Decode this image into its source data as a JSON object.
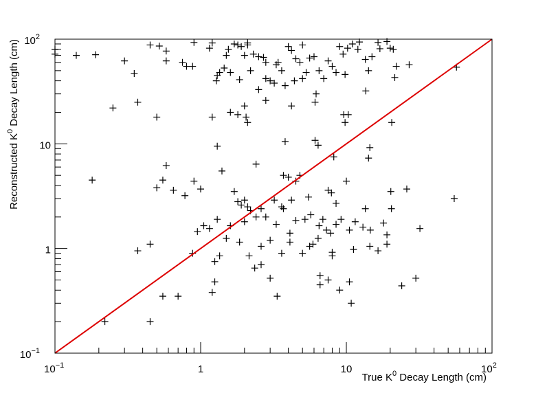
{
  "chart_data": {
    "type": "scatter",
    "title": "",
    "xlabel": {
      "pre": "True K",
      "sup": "0",
      "post": " Decay Length (cm)"
    },
    "ylabel": {
      "pre": "Reconstructed K",
      "sup": "0",
      "post": " Decay Length (cm)"
    },
    "xscale": "log",
    "yscale": "log",
    "xlim": [
      0.1,
      100
    ],
    "ylim": [
      0.1,
      100
    ],
    "grid": false,
    "marker": "+",
    "marker_color": "#000000",
    "line_color": "#dd0000",
    "x_ticks": [
      {
        "value": 0.1,
        "base": "10",
        "exp": "−1"
      },
      {
        "value": 1,
        "base": "1",
        "exp": ""
      },
      {
        "value": 10,
        "base": "10",
        "exp": ""
      },
      {
        "value": 100,
        "base": "10",
        "exp": "2"
      }
    ],
    "y_ticks": [
      {
        "value": 0.1,
        "base": "10",
        "exp": "−1"
      },
      {
        "value": 1,
        "base": "1",
        "exp": ""
      },
      {
        "value": 10,
        "base": "10",
        "exp": ""
      },
      {
        "value": 100,
        "base": "10",
        "exp": "2"
      }
    ],
    "reference_line": {
      "from": [
        0.1,
        0.1
      ],
      "to": [
        100,
        100
      ]
    },
    "points": [
      [
        0.1,
        72
      ],
      [
        0.1,
        80
      ],
      [
        0.14,
        70
      ],
      [
        0.19,
        71
      ],
      [
        0.3,
        62
      ],
      [
        0.35,
        47
      ],
      [
        0.45,
        88
      ],
      [
        0.52,
        86
      ],
      [
        0.58,
        62
      ],
      [
        0.58,
        77
      ],
      [
        0.75,
        60
      ],
      [
        0.8,
        55
      ],
      [
        0.88,
        55
      ],
      [
        0.9,
        93
      ],
      [
        1.15,
        82
      ],
      [
        1.2,
        92
      ],
      [
        1.28,
        40
      ],
      [
        1.3,
        45
      ],
      [
        1.35,
        48
      ],
      [
        1.45,
        53
      ],
      [
        1.55,
        80
      ],
      [
        1.6,
        48
      ],
      [
        1.7,
        90
      ],
      [
        1.8,
        88
      ],
      [
        1.85,
        41
      ],
      [
        1.9,
        85
      ],
      [
        2.0,
        70
      ],
      [
        2.1,
        92
      ],
      [
        2.2,
        50
      ],
      [
        2.3,
        72
      ],
      [
        2.5,
        68
      ],
      [
        2.7,
        67
      ],
      [
        2.8,
        42
      ],
      [
        3.0,
        40
      ],
      [
        3.2,
        38
      ],
      [
        3.4,
        60
      ],
      [
        3.6,
        50
      ],
      [
        4.0,
        85
      ],
      [
        4.2,
        78
      ],
      [
        4.5,
        65
      ],
      [
        4.8,
        60
      ],
      [
        5.0,
        88
      ],
      [
        5.3,
        48
      ],
      [
        5.6,
        66
      ],
      [
        6.0,
        68
      ],
      [
        6.5,
        50
      ],
      [
        7.0,
        42
      ],
      [
        7.5,
        62
      ],
      [
        8.0,
        55
      ],
      [
        8.5,
        48
      ],
      [
        9.0,
        85
      ],
      [
        9.5,
        72
      ],
      [
        10.2,
        82
      ],
      [
        11,
        90
      ],
      [
        12,
        80
      ],
      [
        13.5,
        64
      ],
      [
        14.2,
        50
      ],
      [
        15,
        68
      ],
      [
        17,
        81
      ],
      [
        19,
        95
      ],
      [
        20,
        82
      ],
      [
        21,
        80
      ],
      [
        22,
        55
      ],
      [
        27,
        57
      ],
      [
        57,
        54
      ],
      [
        2.8,
        60
      ],
      [
        3.3,
        57
      ],
      [
        4.4,
        40
      ],
      [
        5.0,
        42
      ],
      [
        3.8,
        36
      ],
      [
        6.2,
        30
      ],
      [
        2.1,
        88
      ],
      [
        1.5,
        70
      ],
      [
        9.8,
        46
      ],
      [
        12.3,
        94
      ],
      [
        16.5,
        93
      ],
      [
        0.25,
        22
      ],
      [
        0.37,
        25
      ],
      [
        0.5,
        18
      ],
      [
        1.2,
        18
      ],
      [
        1.6,
        20
      ],
      [
        1.8,
        19
      ],
      [
        2.0,
        23
      ],
      [
        2.05,
        18
      ],
      [
        2.1,
        16
      ],
      [
        2.5,
        33
      ],
      [
        2.8,
        26
      ],
      [
        4.2,
        23
      ],
      [
        6.1,
        25
      ],
      [
        9.6,
        19
      ],
      [
        9.8,
        16
      ],
      [
        10.3,
        19
      ],
      [
        13.6,
        32
      ],
      [
        20.5,
        16
      ],
      [
        21.5,
        43
      ],
      [
        1.3,
        9.5
      ],
      [
        3.8,
        10.5
      ],
      [
        6.1,
        10.8
      ],
      [
        6.4,
        9.7
      ],
      [
        8.2,
        7.5
      ],
      [
        14.5,
        9.2
      ],
      [
        14.2,
        7.3
      ],
      [
        0.58,
        6.2
      ],
      [
        2.4,
        6.4
      ],
      [
        1.4,
        5.5
      ],
      [
        0.18,
        4.5
      ],
      [
        0.5,
        3.8
      ],
      [
        0.55,
        4.5
      ],
      [
        0.65,
        3.6
      ],
      [
        0.78,
        3.2
      ],
      [
        0.9,
        4.4
      ],
      [
        1.0,
        3.7
      ],
      [
        1.7,
        3.5
      ],
      [
        1.8,
        2.8
      ],
      [
        1.9,
        2.6
      ],
      [
        2.0,
        2.9
      ],
      [
        2.1,
        2.5
      ],
      [
        2.2,
        2.3
      ],
      [
        2.6,
        2.4
      ],
      [
        3.2,
        2.9
      ],
      [
        3.6,
        2.5
      ],
      [
        3.7,
        5.0
      ],
      [
        4.0,
        4.8
      ],
      [
        4.2,
        2.9
      ],
      [
        4.5,
        4.4
      ],
      [
        4.8,
        5.0
      ],
      [
        5.5,
        3.1
      ],
      [
        7.5,
        3.6
      ],
      [
        7.9,
        3.4
      ],
      [
        8.5,
        2.7
      ],
      [
        10.0,
        4.4
      ],
      [
        13.5,
        2.4
      ],
      [
        20.2,
        3.5
      ],
      [
        20.4,
        2.4
      ],
      [
        26,
        3.7
      ],
      [
        55,
        3.0
      ],
      [
        0.95,
        1.45
      ],
      [
        1.05,
        1.65
      ],
      [
        1.15,
        1.55
      ],
      [
        1.3,
        1.9
      ],
      [
        1.6,
        1.65
      ],
      [
        2.0,
        1.8
      ],
      [
        2.4,
        2.0
      ],
      [
        2.8,
        2.0
      ],
      [
        3.3,
        1.7
      ],
      [
        3.7,
        2.4
      ],
      [
        4.1,
        1.4
      ],
      [
        4.5,
        1.85
      ],
      [
        5.2,
        1.9
      ],
      [
        5.7,
        2.1
      ],
      [
        6.5,
        1.65
      ],
      [
        6.9,
        1.9
      ],
      [
        7.3,
        1.5
      ],
      [
        7.8,
        1.4
      ],
      [
        8.5,
        1.7
      ],
      [
        9.2,
        1.9
      ],
      [
        10.5,
        1.5
      ],
      [
        11.5,
        1.8
      ],
      [
        13.0,
        1.6
      ],
      [
        14.6,
        1.5
      ],
      [
        18,
        1.75
      ],
      [
        19,
        1.35
      ],
      [
        32,
        1.55
      ],
      [
        0.37,
        0.95
      ],
      [
        0.45,
        1.1
      ],
      [
        0.88,
        0.9
      ],
      [
        1.25,
        0.75
      ],
      [
        1.35,
        0.85
      ],
      [
        1.5,
        1.25
      ],
      [
        1.85,
        1.15
      ],
      [
        2.15,
        0.85
      ],
      [
        2.35,
        0.65
      ],
      [
        2.6,
        0.7
      ],
      [
        2.6,
        1.05
      ],
      [
        3.0,
        1.2
      ],
      [
        3.6,
        0.9
      ],
      [
        4.1,
        1.15
      ],
      [
        5.0,
        0.9
      ],
      [
        5.6,
        1.05
      ],
      [
        5.9,
        1.1
      ],
      [
        6.4,
        1.25
      ],
      [
        6.6,
        0.55
      ],
      [
        7.5,
        0.5
      ],
      [
        8.0,
        0.85
      ],
      [
        8.0,
        0.92
      ],
      [
        10.8,
        0.3
      ],
      [
        11.2,
        0.98
      ],
      [
        14.5,
        1.05
      ],
      [
        16.5,
        0.95
      ],
      [
        19,
        1.1
      ],
      [
        0.22,
        0.2
      ],
      [
        0.45,
        0.2
      ],
      [
        0.55,
        0.35
      ],
      [
        0.7,
        0.35
      ],
      [
        1.2,
        0.38
      ],
      [
        1.25,
        0.48
      ],
      [
        3.0,
        0.52
      ],
      [
        3.35,
        0.35
      ],
      [
        6.6,
        0.45
      ],
      [
        9.0,
        0.4
      ],
      [
        10.5,
        0.48
      ],
      [
        24,
        0.44
      ],
      [
        30,
        0.52
      ]
    ]
  }
}
